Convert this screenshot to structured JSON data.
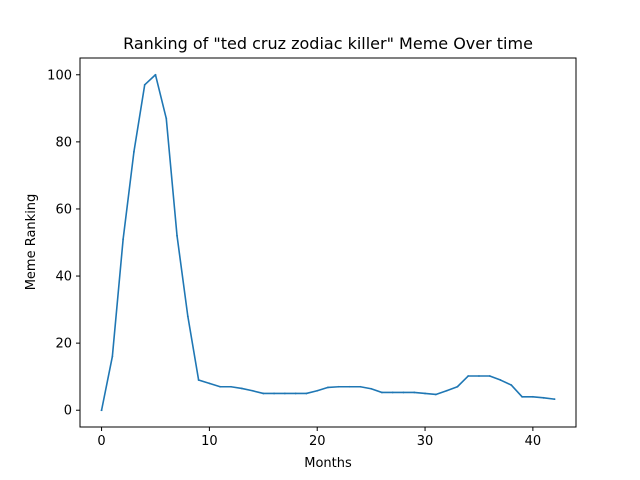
{
  "chart_data": {
    "type": "line",
    "title": "Ranking of \"ted cruz zodiac killer\" Meme Over time",
    "xlabel": "Months",
    "ylabel": "Meme Ranking",
    "xlim": [
      -2,
      44
    ],
    "ylim": [
      -5,
      105
    ],
    "xticks": [
      0,
      10,
      20,
      30,
      40
    ],
    "yticks": [
      0,
      20,
      40,
      60,
      80,
      100
    ],
    "grid": false,
    "line_color": "#1f77b4",
    "x": [
      0,
      1,
      2,
      3,
      4,
      5,
      6,
      7,
      8,
      9,
      10,
      11,
      12,
      13,
      14,
      15,
      16,
      17,
      18,
      19,
      20,
      21,
      22,
      23,
      24,
      25,
      26,
      27,
      28,
      29,
      30,
      31,
      32,
      33,
      34,
      35,
      36,
      37,
      38,
      39,
      40,
      41,
      42
    ],
    "values": [
      0,
      16,
      51,
      77,
      97,
      100,
      87,
      52,
      28,
      9,
      8,
      7,
      7,
      6.5,
      5.8,
      5,
      5,
      5,
      5,
      5,
      5.8,
      6.8,
      7,
      7,
      7,
      6.4,
      5.3,
      5.3,
      5.3,
      5.3,
      5,
      4.7,
      5.8,
      7,
      10.2,
      10.2,
      10.2,
      9,
      7.5,
      4,
      4,
      3.7,
      3.3
    ]
  }
}
